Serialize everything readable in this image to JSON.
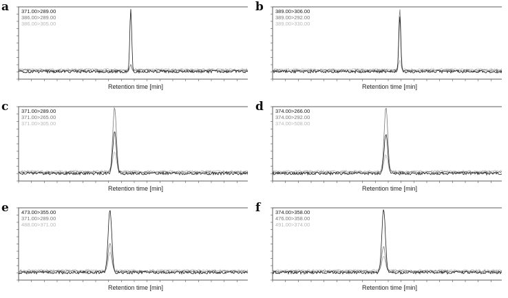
{
  "panels": [
    {
      "letter": "a",
      "legend": [
        "371.00>289.00",
        "386.00>289.00",
        "386.00>305.00"
      ],
      "legend_colors": [
        "#1a1a1a",
        "#777777",
        "#b8b8b8"
      ],
      "xlabel": "Retention time [min]",
      "chart_data": {
        "type": "line",
        "xlabel": "Retention time [min]",
        "ylabel": "",
        "peaks": [
          {
            "series": "371.00>289.00",
            "rt_fraction": 0.485,
            "height_fraction": 1.0
          },
          {
            "series": "386.00>289.00",
            "rt_fraction": 0.485,
            "height_fraction": 0.1
          },
          {
            "series": "386.00>305.00",
            "rt_fraction": 0.485,
            "height_fraction": 0.07
          }
        ]
      }
    },
    {
      "letter": "b",
      "legend": [
        "389.00>306.00",
        "389.00>292.00",
        "389.00>330.00"
      ],
      "legend_colors": [
        "#1a1a1a",
        "#777777",
        "#b8b8b8"
      ],
      "xlabel": "Retention time [min]",
      "chart_data": {
        "type": "line",
        "xlabel": "Retention time [min]",
        "ylabel": "",
        "peaks": [
          {
            "series": "389.00>306.00",
            "rt_fraction": 0.55,
            "height_fraction": 0.9
          },
          {
            "series": "389.00>292.00",
            "rt_fraction": 0.55,
            "height_fraction": 1.0
          },
          {
            "series": "389.00>330.00",
            "rt_fraction": 0.55,
            "height_fraction": 0.15
          }
        ]
      }
    },
    {
      "letter": "c",
      "legend": [
        "371.00>289.00",
        "371.00>265.00",
        "371.00>305.00"
      ],
      "legend_colors": [
        "#1a1a1a",
        "#777777",
        "#b8b8b8"
      ],
      "xlabel": "Retention time [min]",
      "chart_data": {
        "type": "line",
        "xlabel": "Retention time [min]",
        "ylabel": "",
        "peaks": [
          {
            "series": "371.00>289.00",
            "rt_fraction": 0.415,
            "height_fraction": 0.65
          },
          {
            "series": "371.00>265.00",
            "rt_fraction": 0.415,
            "height_fraction": 1.0
          },
          {
            "series": "371.00>305.00",
            "rt_fraction": 0.415,
            "height_fraction": 0.3
          }
        ]
      }
    },
    {
      "letter": "d",
      "legend": [
        "374.00>266.00",
        "374.00>292.00",
        "374.00>508.00"
      ],
      "legend_colors": [
        "#1a1a1a",
        "#777777",
        "#b8b8b8"
      ],
      "xlabel": "Retention time [min]",
      "chart_data": {
        "type": "line",
        "xlabel": "Retention time [min]",
        "ylabel": "",
        "peaks": [
          {
            "series": "374.00>266.00",
            "rt_fraction": 0.49,
            "height_fraction": 0.62
          },
          {
            "series": "374.00>292.00",
            "rt_fraction": 0.49,
            "height_fraction": 1.0
          },
          {
            "series": "374.00>508.00",
            "rt_fraction": 0.49,
            "height_fraction": 0.25
          }
        ]
      }
    },
    {
      "letter": "e",
      "legend": [
        "473.00>355.00",
        "371.00>289.00",
        "488.00>371.00"
      ],
      "legend_colors": [
        "#1a1a1a",
        "#777777",
        "#b8b8b8"
      ],
      "xlabel": "Retention time [min]",
      "chart_data": {
        "type": "line",
        "xlabel": "Retention time [min]",
        "ylabel": "",
        "peaks": [
          {
            "series": "473.00>355.00",
            "rt_fraction": 0.395,
            "height_fraction": 1.0
          },
          {
            "series": "371.00>289.00",
            "rt_fraction": 0.395,
            "height_fraction": 0.45
          },
          {
            "series": "488.00>371.00",
            "rt_fraction": 0.395,
            "height_fraction": 0.28
          }
        ]
      }
    },
    {
      "letter": "f",
      "legend": [
        "374.00>358.00",
        "476.00>358.00",
        "491.00>374.00"
      ],
      "legend_colors": [
        "#1a1a1a",
        "#777777",
        "#b8b8b8"
      ],
      "xlabel": "Retention time [min]",
      "chart_data": {
        "type": "line",
        "xlabel": "Retention time [min]",
        "ylabel": "",
        "peaks": [
          {
            "series": "374.00>358.00",
            "rt_fraction": 0.48,
            "height_fraction": 1.0
          },
          {
            "series": "476.00>358.00",
            "rt_fraction": 0.48,
            "height_fraction": 0.4
          },
          {
            "series": "491.00>374.00",
            "rt_fraction": 0.48,
            "height_fraction": 0.22
          }
        ]
      }
    }
  ]
}
